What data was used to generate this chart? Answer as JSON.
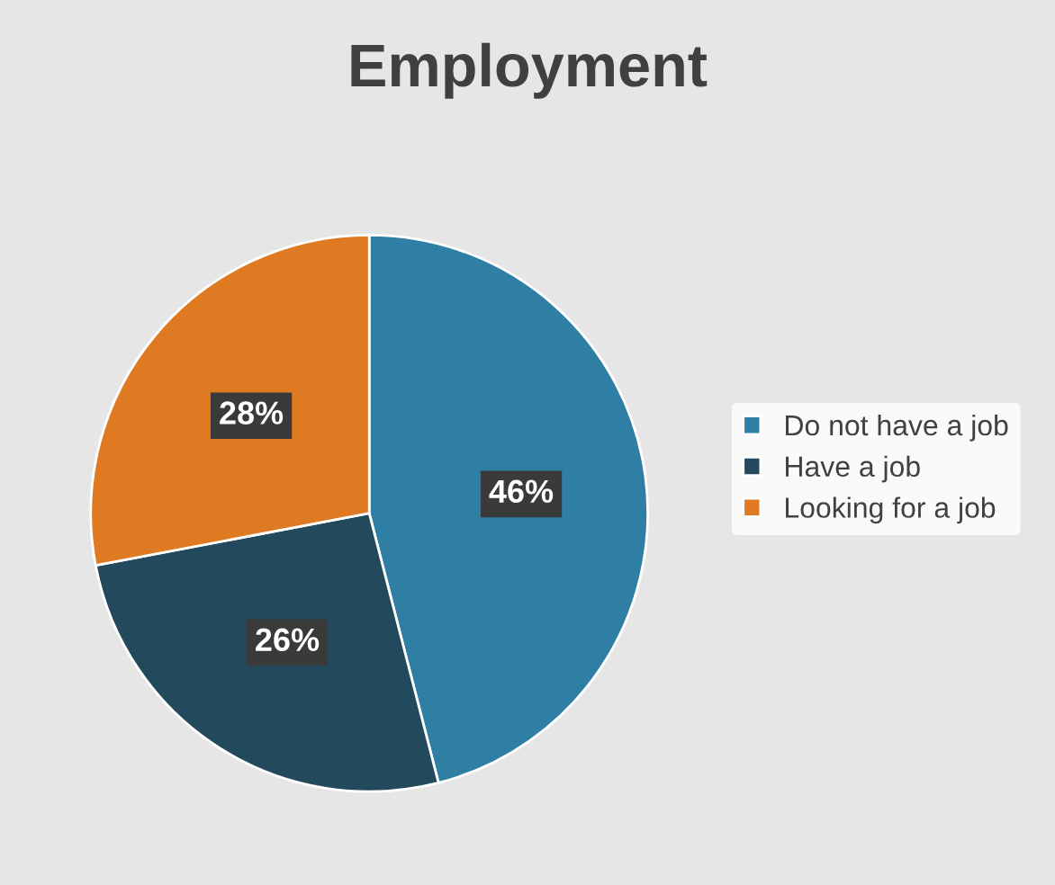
{
  "chart_data": {
    "type": "pie",
    "title": "Employment",
    "categories": [
      "Do not have a job",
      "Have a job",
      "Looking for a job"
    ],
    "values": [
      46,
      26,
      28
    ],
    "value_labels": [
      "46%",
      "26%",
      "28%"
    ],
    "colors": [
      "#2e7fa3",
      "#234a5c",
      "#e07a22"
    ],
    "legend": "right"
  }
}
